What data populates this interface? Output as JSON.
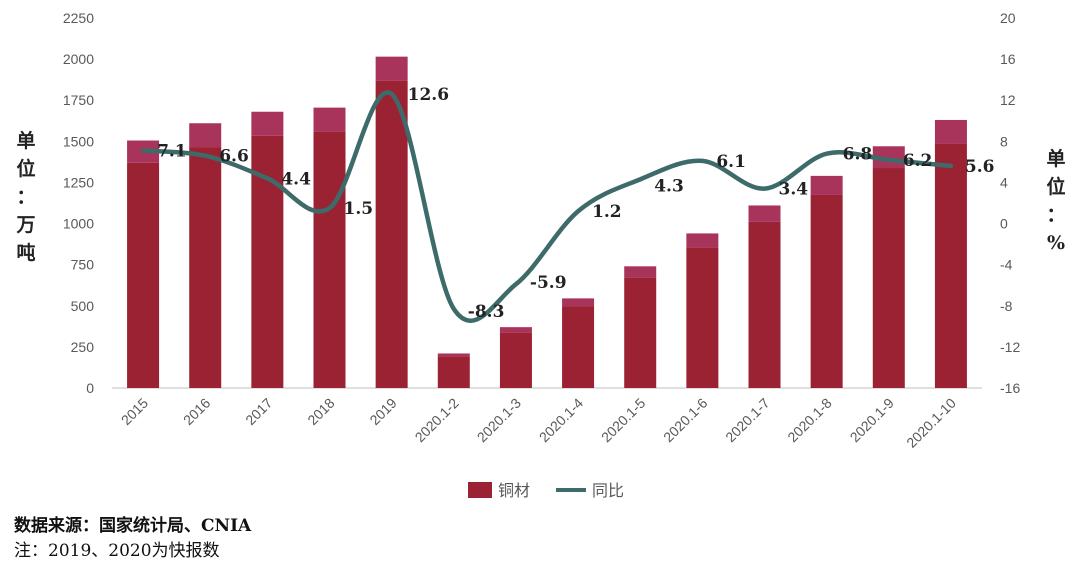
{
  "units": {
    "left_label": [
      "单",
      "位",
      "：",
      "万",
      "吨"
    ],
    "right_label": [
      "单",
      "位",
      "：",
      "%"
    ]
  },
  "footer": {
    "source": "数据来源：国家统计局、CNIA",
    "note": "注：2019、2020为快报数"
  },
  "colors": {
    "bar": "#9b2232",
    "bar_top": "#a8345c",
    "line": "#3d6b6a",
    "axis_text": "#595959",
    "gridline": "#d9d9d9"
  },
  "chart_data": {
    "type": "bar+line",
    "categories": [
      "2015",
      "2016",
      "2017",
      "2018",
      "2019",
      "2020.1-2",
      "2020.1-3",
      "2020.1-4",
      "2020.1-5",
      "2020.1-6",
      "2020.1-7",
      "2020.1-8",
      "2020.1-9",
      "2020.1-10"
    ],
    "series": [
      {
        "name": "铜材",
        "type": "bar",
        "axis": "left",
        "values": [
          1505,
          1610,
          1680,
          1705,
          2015,
          210,
          370,
          545,
          740,
          940,
          1110,
          1290,
          1470,
          1630
        ]
      },
      {
        "name": "同比",
        "type": "line",
        "axis": "right",
        "values": [
          7.1,
          6.6,
          4.4,
          1.5,
          12.6,
          -8.3,
          -5.9,
          1.2,
          4.3,
          6.1,
          3.4,
          6.8,
          6.2,
          5.6
        ],
        "labels": [
          "7.1",
          "6.6",
          "4.4",
          "1.5",
          "12.6",
          "-8.3",
          "-5.9",
          "1.2",
          "4.3",
          "6.1",
          "3.4",
          "6.8",
          "6.2",
          "5.6"
        ]
      }
    ],
    "y_left": {
      "min": 0,
      "max": 2250,
      "ticks": [
        "0",
        "250",
        "500",
        "750",
        "1000",
        "1250",
        "1500",
        "1750",
        "2000",
        "2250"
      ]
    },
    "y_right": {
      "min": -16,
      "max": 20,
      "ticks": [
        "-16",
        "-12",
        "-8",
        "-4",
        "0",
        "4",
        "8",
        "12",
        "16",
        "20"
      ]
    },
    "legend": {
      "position": "bottom",
      "items": [
        "铜材",
        "同比"
      ]
    },
    "grid": false
  }
}
